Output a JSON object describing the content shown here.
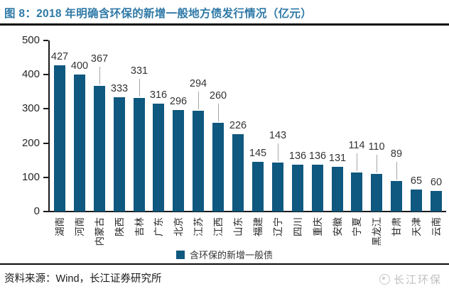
{
  "header": {
    "title": "图 8：2018 年明确含环保的新增一般地方债发行情况（亿元）"
  },
  "chart_data": {
    "type": "bar",
    "title": "2018 年明确含环保的新增一般地方债发行情况（亿元）",
    "categories": [
      "湖南",
      "河南",
      "内蒙古",
      "陕西",
      "吉林",
      "广东",
      "北京",
      "江苏",
      "江西",
      "山东",
      "福建",
      "辽宁",
      "四川",
      "重庆",
      "安徽",
      "宁夏",
      "黑龙江",
      "甘肃",
      "天津",
      "云南"
    ],
    "values": [
      427,
      400,
      367,
      333,
      331,
      316,
      296,
      294,
      260,
      226,
      145,
      143,
      136,
      136,
      131,
      114,
      110,
      89,
      65,
      60
    ],
    "xlabel": "",
    "ylabel": "",
    "ylim": [
      0,
      500
    ],
    "yticks": [
      0,
      100,
      200,
      300,
      400,
      500
    ],
    "grid": false,
    "legend": "含环保的新增一般债",
    "legend_position": "bottom-center",
    "bar_color": "#0f587f",
    "raised_label_indices": [
      2,
      4,
      7,
      8,
      11,
      15,
      16,
      17
    ]
  },
  "footer": {
    "source": "资料来源：Wind，长江证券研究所",
    "watermark": "长江环保"
  },
  "colors": {
    "title": "#2e79a7",
    "bar": "#0f587f",
    "axis": "#1a1a1a",
    "value_label": "#333333",
    "leader_line": "#a6a6a6",
    "watermark": "#c0c0c4"
  }
}
